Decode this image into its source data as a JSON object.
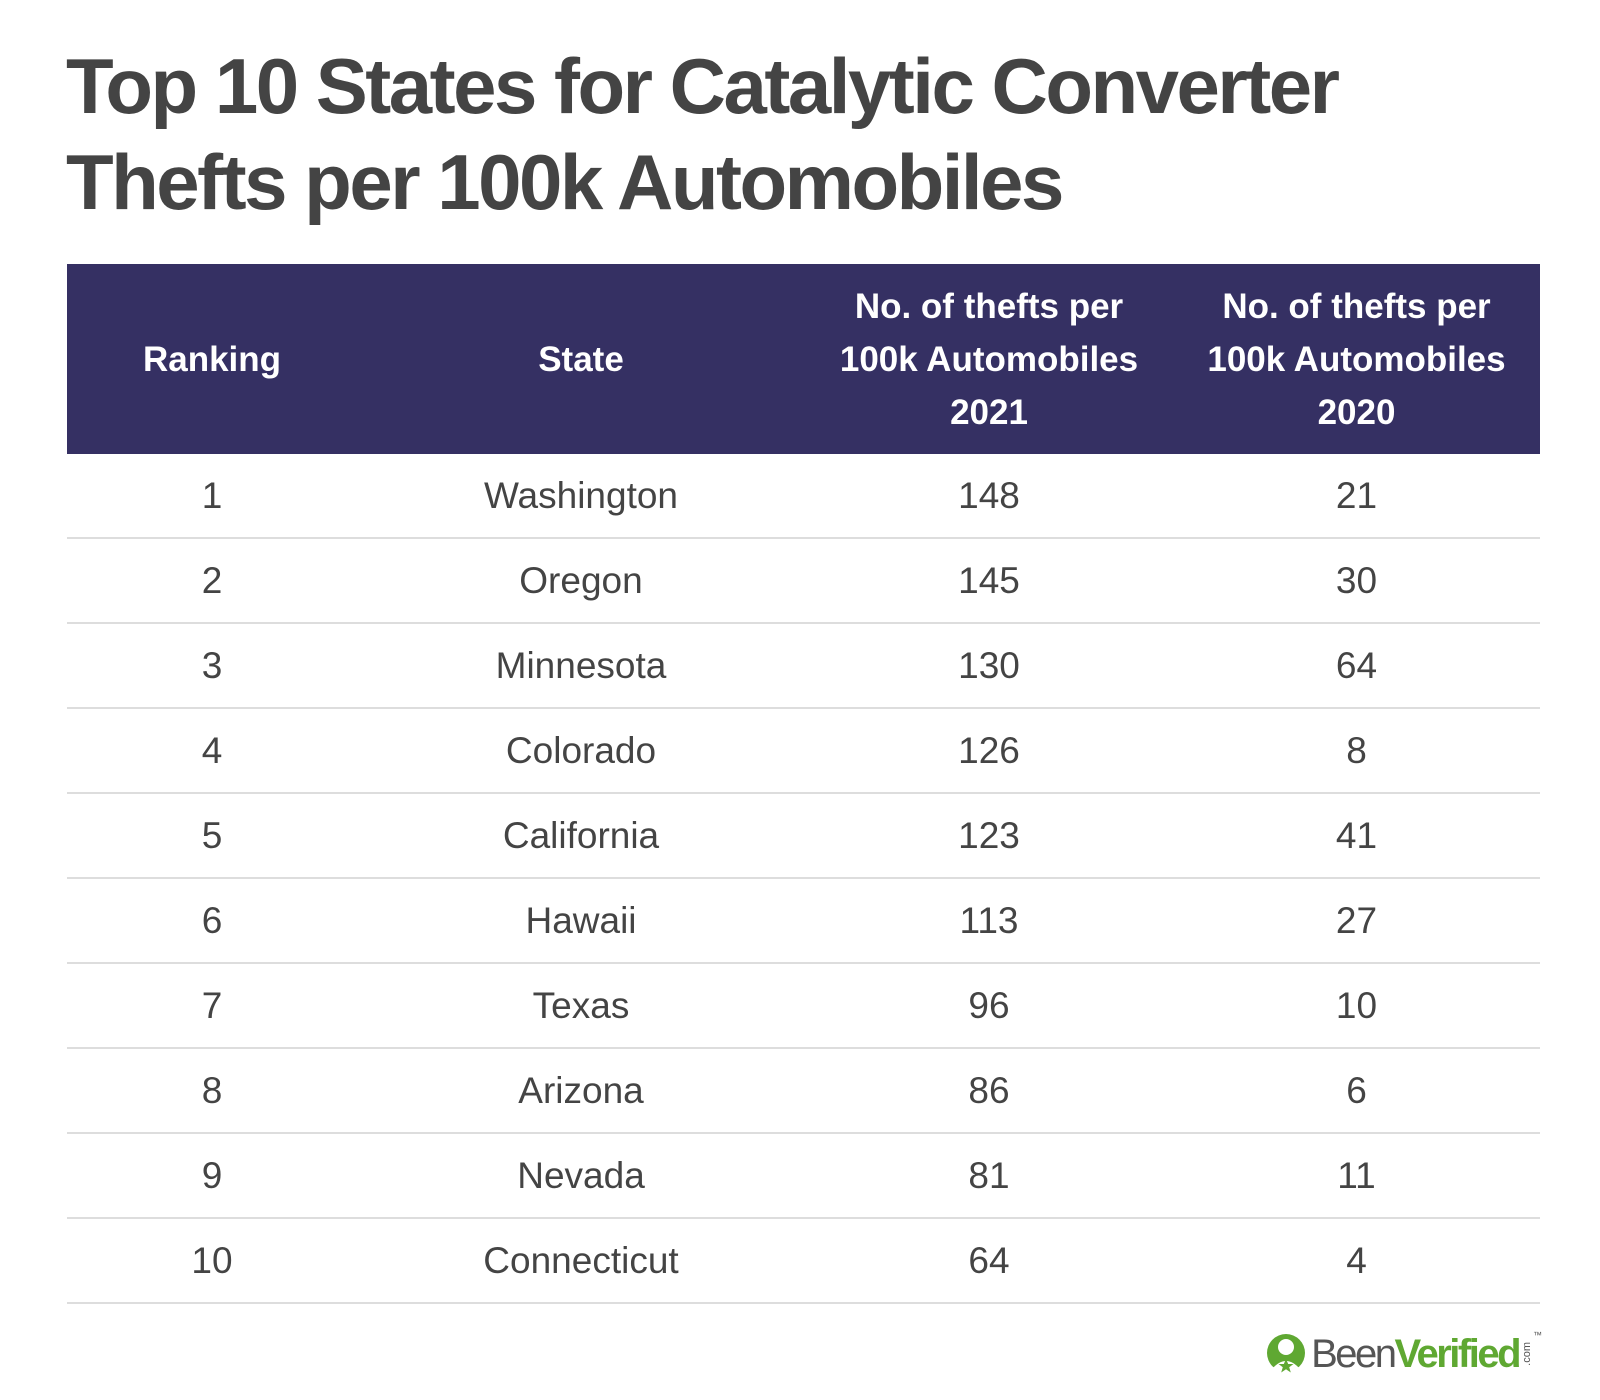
{
  "title_lines": [
    "Top 10 States for Catalytic Converter",
    "Thefts per 100k Automobiles"
  ],
  "table": {
    "headers": [
      {
        "lines": [
          "Ranking"
        ]
      },
      {
        "lines": [
          "State"
        ]
      },
      {
        "lines": [
          "No. of thefts per",
          "100k Automobiles",
          "2021"
        ]
      },
      {
        "lines": [
          "No. of thefts per",
          "100k Automobiles",
          "2020"
        ]
      }
    ],
    "rows": [
      [
        "1",
        "Washington",
        "148",
        "21"
      ],
      [
        "2",
        "Oregon",
        "145",
        "30"
      ],
      [
        "3",
        "Minnesota",
        "130",
        "64"
      ],
      [
        "4",
        "Colorado",
        "126",
        "8"
      ],
      [
        "5",
        "California",
        "123",
        "41"
      ],
      [
        "6",
        "Hawaii",
        "113",
        "27"
      ],
      [
        "7",
        "Texas",
        "96",
        "10"
      ],
      [
        "8",
        "Arizona",
        "86",
        "6"
      ],
      [
        "9",
        "Nevada",
        "81",
        "11"
      ],
      [
        "10",
        "Connecticut",
        "64",
        "4"
      ]
    ]
  },
  "logo": {
    "been": "Been",
    "verified": "Verified",
    "com": ".com",
    "tm": "™"
  },
  "colors": {
    "header_bg": "#353063",
    "header_text": "#ffffff",
    "body_text": "#444444",
    "row_divider": "#dddddd",
    "logo_green": "#5fa832"
  },
  "chart_data": {
    "type": "table",
    "title": "Top 10 States for Catalytic Converter Thefts per 100k Automobiles",
    "columns": [
      "Ranking",
      "State",
      "No. of thefts per 100k Automobiles 2021",
      "No. of thefts per 100k Automobiles 2020"
    ],
    "categories": [
      "Washington",
      "Oregon",
      "Minnesota",
      "Colorado",
      "California",
      "Hawaii",
      "Texas",
      "Arizona",
      "Nevada",
      "Connecticut"
    ],
    "series": [
      {
        "name": "No. of thefts per 100k Automobiles 2021",
        "values": [
          148,
          145,
          130,
          126,
          123,
          113,
          96,
          86,
          81,
          64
        ]
      },
      {
        "name": "No. of thefts per 100k Automobiles 2020",
        "values": [
          21,
          30,
          64,
          8,
          41,
          27,
          10,
          6,
          11,
          4
        ]
      }
    ]
  }
}
